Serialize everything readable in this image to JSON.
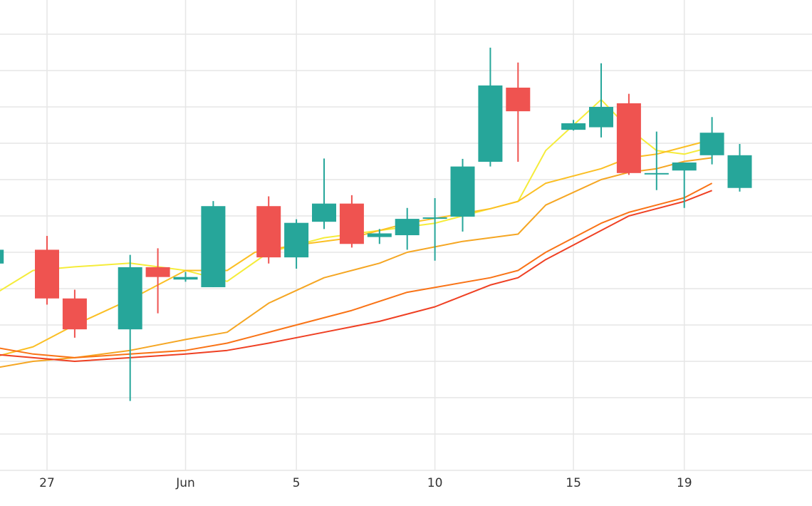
{
  "chart_data": {
    "type": "candlestick",
    "title": "",
    "xlabel": "",
    "ylabel": "",
    "x_ticks": [
      "27",
      "Jun",
      "5",
      "10",
      "15",
      "19"
    ],
    "x_tick_dates": [
      "2024-05-27",
      "2024-06-01",
      "2024-06-05",
      "2024-06-10",
      "2024-06-15",
      "2024-06-19"
    ],
    "ylim": [
      0,
      100
    ],
    "grid": true,
    "colors": {
      "up": "#26a69a",
      "down": "#ef5350"
    },
    "candles": [
      {
        "date": "2024-05-25",
        "open": 56.9,
        "high": 65.1,
        "low": 54.0,
        "close": 60.7
      },
      {
        "date": "2024-05-27",
        "open": 60.7,
        "high": 64.5,
        "low": 45.6,
        "close": 47.3
      },
      {
        "date": "2024-05-28",
        "open": 47.3,
        "high": 49.7,
        "low": 36.5,
        "close": 38.8
      },
      {
        "date": "2024-05-30",
        "open": 38.8,
        "high": 59.3,
        "low": 19.1,
        "close": 55.9
      },
      {
        "date": "2024-05-31",
        "open": 55.9,
        "high": 61.1,
        "low": 43.2,
        "close": 53.2
      },
      {
        "date": "2024-06-01",
        "open": 52.5,
        "high": 54.6,
        "low": 51.9,
        "close": 53.2
      },
      {
        "date": "2024-06-02",
        "open": 50.4,
        "high": 74.1,
        "low": 50.4,
        "close": 72.7
      },
      {
        "date": "2024-06-04",
        "open": 72.7,
        "high": 75.4,
        "low": 56.9,
        "close": 58.6
      },
      {
        "date": "2024-06-05",
        "open": 58.6,
        "high": 69.1,
        "low": 55.5,
        "close": 68.1
      },
      {
        "date": "2024-06-06",
        "open": 68.4,
        "high": 85.8,
        "low": 66.4,
        "close": 73.4
      },
      {
        "date": "2024-06-07",
        "open": 73.4,
        "high": 75.7,
        "low": 61.3,
        "close": 62.3
      },
      {
        "date": "2024-06-08",
        "open": 64.2,
        "high": 66.4,
        "low": 62.3,
        "close": 65.2
      },
      {
        "date": "2024-06-09",
        "open": 64.7,
        "high": 72.2,
        "low": 60.7,
        "close": 69.2
      },
      {
        "date": "2024-06-10",
        "open": 69.4,
        "high": 74.9,
        "low": 57.7,
        "close": 69.6
      },
      {
        "date": "2024-06-11",
        "open": 69.8,
        "high": 85.7,
        "low": 65.7,
        "close": 83.6
      },
      {
        "date": "2024-06-12",
        "open": 84.9,
        "high": 116.3,
        "low": 83.6,
        "close": 105.9
      },
      {
        "date": "2024-06-13",
        "open": 105.3,
        "high": 112.2,
        "low": 84.9,
        "close": 98.8
      },
      {
        "date": "2024-06-15",
        "open": 93.7,
        "high": 96.4,
        "low": 93.5,
        "close": 95.5
      },
      {
        "date": "2024-06-16",
        "open": 94.4,
        "high": 112.0,
        "low": 91.6,
        "close": 100.0
      },
      {
        "date": "2024-06-17",
        "open": 101.0,
        "high": 103.6,
        "low": 81.3,
        "close": 81.8
      },
      {
        "date": "2024-06-18",
        "open": 81.8,
        "high": 93.2,
        "low": 77.1,
        "close": 81.8
      },
      {
        "date": "2024-06-19",
        "open": 82.5,
        "high": 84.5,
        "low": 72.2,
        "close": 84.7
      },
      {
        "date": "2024-06-20",
        "open": 86.7,
        "high": 97.2,
        "low": 84.2,
        "close": 92.9
      },
      {
        "date": "2024-06-21",
        "open": 77.7,
        "high": 89.8,
        "low": 76.7,
        "close": 86.7
      }
    ],
    "series": [
      {
        "color": "#f5ec3a",
        "points": [
          [
            -2,
            48
          ],
          [
            -0.5,
            55
          ],
          [
            1,
            56
          ],
          [
            3,
            57
          ],
          [
            5,
            55
          ],
          [
            6.5,
            52
          ],
          [
            8,
            60
          ],
          [
            10,
            64
          ],
          [
            12,
            66
          ],
          [
            14,
            68
          ],
          [
            16,
            72
          ],
          [
            17,
            74
          ],
          [
            18,
            88
          ],
          [
            19,
            95
          ],
          [
            20,
            102
          ],
          [
            21,
            94
          ],
          [
            22,
            88
          ],
          [
            23,
            87
          ],
          [
            24,
            89
          ]
        ]
      },
      {
        "color": "#fbbf24",
        "points": [
          [
            -2,
            31
          ],
          [
            -0.5,
            34
          ],
          [
            1,
            40
          ],
          [
            3,
            47
          ],
          [
            5,
            55
          ],
          [
            6.5,
            55
          ],
          [
            7.5,
            60
          ],
          [
            9,
            62
          ],
          [
            11,
            64
          ],
          [
            13,
            68
          ],
          [
            16,
            72
          ],
          [
            17,
            74
          ],
          [
            18,
            79
          ],
          [
            20,
            83
          ],
          [
            21,
            86
          ],
          [
            22,
            87
          ],
          [
            23,
            89
          ],
          [
            24,
            91
          ]
        ]
      },
      {
        "color": "#f5a623",
        "points": [
          [
            -2,
            28
          ],
          [
            -0.5,
            30
          ],
          [
            1,
            31
          ],
          [
            3,
            33
          ],
          [
            5,
            36
          ],
          [
            6.5,
            38
          ],
          [
            8,
            46
          ],
          [
            10,
            53
          ],
          [
            12,
            57
          ],
          [
            13,
            60
          ],
          [
            15,
            63
          ],
          [
            17,
            65
          ],
          [
            18,
            73
          ],
          [
            20,
            80
          ],
          [
            21,
            82
          ],
          [
            22,
            83
          ],
          [
            23,
            85
          ],
          [
            24,
            86
          ]
        ]
      },
      {
        "color": "#f97316",
        "points": [
          [
            -2,
            34
          ],
          [
            -0.5,
            32
          ],
          [
            1,
            31
          ],
          [
            3,
            32
          ],
          [
            5,
            33
          ],
          [
            6.5,
            35
          ],
          [
            7.5,
            37
          ],
          [
            9,
            40
          ],
          [
            11,
            44
          ],
          [
            13,
            49
          ],
          [
            16,
            53
          ],
          [
            17,
            55
          ],
          [
            18,
            60
          ],
          [
            20,
            68
          ],
          [
            21,
            71
          ],
          [
            22,
            73
          ],
          [
            23,
            75
          ],
          [
            24,
            79
          ]
        ]
      },
      {
        "color": "#ef4023",
        "points": [
          [
            -2,
            32
          ],
          [
            -0.5,
            31
          ],
          [
            1,
            30
          ],
          [
            3,
            31
          ],
          [
            5,
            32
          ],
          [
            6.5,
            33
          ],
          [
            8,
            35
          ],
          [
            10,
            38
          ],
          [
            12,
            41
          ],
          [
            14,
            45
          ],
          [
            15,
            48
          ],
          [
            16,
            51
          ],
          [
            17,
            53
          ],
          [
            18,
            58
          ],
          [
            20,
            66
          ],
          [
            21,
            70
          ],
          [
            22,
            72
          ],
          [
            23,
            74
          ],
          [
            24,
            77
          ]
        ]
      }
    ]
  }
}
